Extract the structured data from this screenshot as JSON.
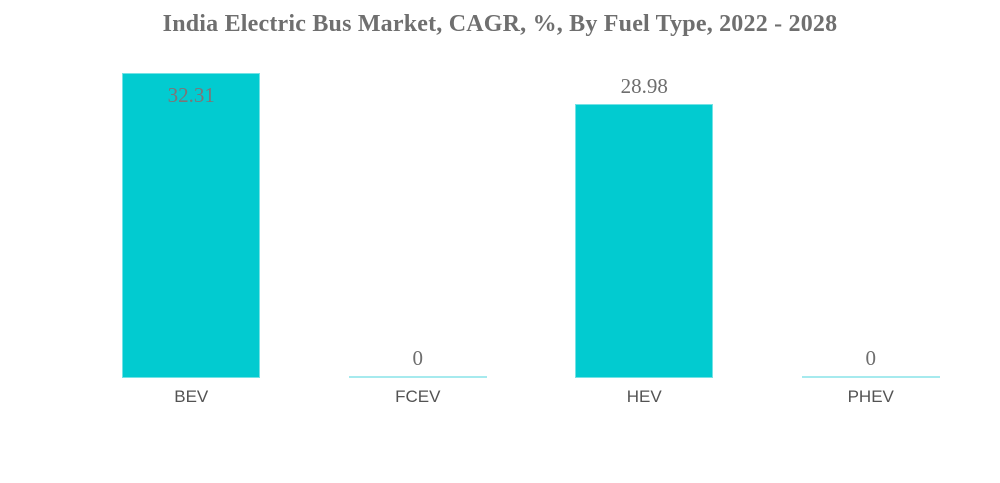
{
  "title": "India Electric Bus Market, CAGR, %, By Fuel Type, 2022 - 2028",
  "colors": {
    "bar": "#02CBD0",
    "zero_line": "#A6EAEE",
    "title_text": "#6F6F6F",
    "value_label": "#6E6E6E",
    "value_label_inside": "#7D7577",
    "category_label": "#535353",
    "background": "#FFFFFF"
  },
  "chart_data": {
    "type": "bar",
    "title": "India Electric Bus Market, CAGR, %, By Fuel Type, 2022 - 2028",
    "categories": [
      "BEV",
      "FCEV",
      "HEV",
      "PHEV"
    ],
    "values": [
      32.31,
      0,
      28.98,
      0
    ],
    "value_labels": [
      "32.31",
      "0",
      "28.98",
      "0"
    ],
    "xlabel": "",
    "ylabel": "",
    "ylim": [
      0,
      32.31
    ],
    "grid": false,
    "legend": false,
    "axes_visible": false,
    "bar_label_placement": "tallest bar label inside top, others above bar; zero values drawn as thin line at baseline"
  }
}
